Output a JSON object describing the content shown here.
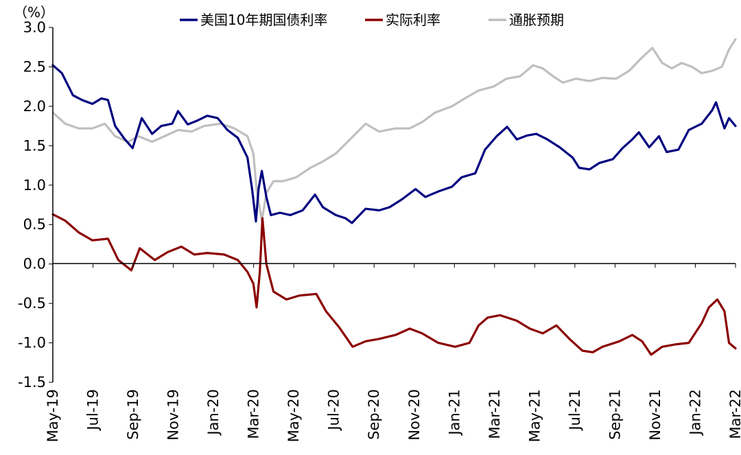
{
  "chart_data": {
    "type": "line",
    "unit_label": "（%）",
    "ylim": [
      -1.5,
      3.0
    ],
    "y_ticks": [
      {
        "value": 3.0,
        "label": "3.0",
        "color": "#000000"
      },
      {
        "value": 2.5,
        "label": "2.5",
        "color": "#000000"
      },
      {
        "value": 2.0,
        "label": "2.0",
        "color": "#000000"
      },
      {
        "value": 1.5,
        "label": "1.5",
        "color": "#000000"
      },
      {
        "value": 1.0,
        "label": "1.0",
        "color": "#000000"
      },
      {
        "value": 0.5,
        "label": "0.5",
        "color": "#000000"
      },
      {
        "value": 0.0,
        "label": "0.0",
        "color": "#000000"
      },
      {
        "value": -0.5,
        "label": "-0.5",
        "color": "#ff0000"
      },
      {
        "value": -1.0,
        "label": "-1.0",
        "color": "#ff0000"
      },
      {
        "value": -1.5,
        "label": "-1.5",
        "color": "#ff0000"
      }
    ],
    "x_ticks": [
      "May-19",
      "Jul-19",
      "Sep-19",
      "Nov-19",
      "Jan-20",
      "Mar-20",
      "May-20",
      "Jul-20",
      "Sep-20",
      "Nov-20",
      "Jan-21",
      "Mar-21",
      "May-21",
      "Jul-21",
      "Sep-21",
      "Nov-21",
      "Jan-22",
      "Mar-22"
    ],
    "x_range": [
      "2019-05-01",
      "2022-03-18"
    ],
    "legend_position": "top",
    "series": [
      {
        "name": "美国10年期国债利率",
        "color": "#000080",
        "points": [
          [
            "2019-05-01",
            2.52
          ],
          [
            "2019-05-15",
            2.42
          ],
          [
            "2019-06-01",
            2.14
          ],
          [
            "2019-06-15",
            2.08
          ],
          [
            "2019-07-01",
            2.03
          ],
          [
            "2019-07-15",
            2.1
          ],
          [
            "2019-07-25",
            2.08
          ],
          [
            "2019-08-05",
            1.75
          ],
          [
            "2019-08-20",
            1.58
          ],
          [
            "2019-09-01",
            1.47
          ],
          [
            "2019-09-15",
            1.85
          ],
          [
            "2019-10-01",
            1.65
          ],
          [
            "2019-10-15",
            1.75
          ],
          [
            "2019-11-01",
            1.78
          ],
          [
            "2019-11-10",
            1.94
          ],
          [
            "2019-11-25",
            1.77
          ],
          [
            "2019-12-10",
            1.82
          ],
          [
            "2019-12-25",
            1.88
          ],
          [
            "2020-01-10",
            1.85
          ],
          [
            "2020-01-25",
            1.7
          ],
          [
            "2020-02-10",
            1.6
          ],
          [
            "2020-02-25",
            1.35
          ],
          [
            "2020-03-03",
            0.95
          ],
          [
            "2020-03-09",
            0.54
          ],
          [
            "2020-03-13",
            0.95
          ],
          [
            "2020-03-18",
            1.18
          ],
          [
            "2020-03-25",
            0.85
          ],
          [
            "2020-04-01",
            0.62
          ],
          [
            "2020-04-15",
            0.65
          ],
          [
            "2020-05-01",
            0.62
          ],
          [
            "2020-05-20",
            0.68
          ],
          [
            "2020-06-08",
            0.88
          ],
          [
            "2020-06-20",
            0.72
          ],
          [
            "2020-07-10",
            0.62
          ],
          [
            "2020-07-25",
            0.58
          ],
          [
            "2020-08-04",
            0.52
          ],
          [
            "2020-08-25",
            0.7
          ],
          [
            "2020-09-15",
            0.68
          ],
          [
            "2020-10-01",
            0.72
          ],
          [
            "2020-10-20",
            0.82
          ],
          [
            "2020-11-10",
            0.95
          ],
          [
            "2020-11-25",
            0.85
          ],
          [
            "2020-12-15",
            0.92
          ],
          [
            "2021-01-05",
            0.98
          ],
          [
            "2021-01-20",
            1.1
          ],
          [
            "2021-02-10",
            1.15
          ],
          [
            "2021-02-25",
            1.45
          ],
          [
            "2021-03-15",
            1.62
          ],
          [
            "2021-03-31",
            1.74
          ],
          [
            "2021-04-15",
            1.58
          ],
          [
            "2021-05-01",
            1.63
          ],
          [
            "2021-05-15",
            1.65
          ],
          [
            "2021-06-01",
            1.58
          ],
          [
            "2021-06-20",
            1.48
          ],
          [
            "2021-07-10",
            1.35
          ],
          [
            "2021-07-20",
            1.22
          ],
          [
            "2021-08-05",
            1.2
          ],
          [
            "2021-08-20",
            1.28
          ],
          [
            "2021-09-10",
            1.33
          ],
          [
            "2021-09-25",
            1.47
          ],
          [
            "2021-10-10",
            1.58
          ],
          [
            "2021-10-20",
            1.67
          ],
          [
            "2021-11-05",
            1.48
          ],
          [
            "2021-11-20",
            1.62
          ],
          [
            "2021-12-02",
            1.42
          ],
          [
            "2021-12-20",
            1.45
          ],
          [
            "2022-01-05",
            1.7
          ],
          [
            "2022-01-25",
            1.78
          ],
          [
            "2022-02-10",
            1.95
          ],
          [
            "2022-02-16",
            2.05
          ],
          [
            "2022-03-01",
            1.72
          ],
          [
            "2022-03-08",
            1.85
          ],
          [
            "2022-03-18",
            1.75
          ]
        ]
      },
      {
        "name": "实际利率",
        "color": "#8b0000",
        "points": [
          [
            "2019-05-01",
            0.63
          ],
          [
            "2019-05-20",
            0.55
          ],
          [
            "2019-06-10",
            0.4
          ],
          [
            "2019-07-01",
            0.3
          ],
          [
            "2019-07-25",
            0.32
          ],
          [
            "2019-08-10",
            0.05
          ],
          [
            "2019-08-30",
            -0.08
          ],
          [
            "2019-09-12",
            0.2
          ],
          [
            "2019-10-05",
            0.05
          ],
          [
            "2019-10-25",
            0.15
          ],
          [
            "2019-11-15",
            0.22
          ],
          [
            "2019-12-05",
            0.12
          ],
          [
            "2019-12-25",
            0.14
          ],
          [
            "2020-01-20",
            0.12
          ],
          [
            "2020-02-10",
            0.05
          ],
          [
            "2020-02-25",
            -0.1
          ],
          [
            "2020-03-05",
            -0.25
          ],
          [
            "2020-03-10",
            -0.55
          ],
          [
            "2020-03-15",
            -0.1
          ],
          [
            "2020-03-19",
            0.58
          ],
          [
            "2020-03-25",
            0.0
          ],
          [
            "2020-04-05",
            -0.35
          ],
          [
            "2020-04-25",
            -0.45
          ],
          [
            "2020-05-15",
            -0.4
          ],
          [
            "2020-06-10",
            -0.38
          ],
          [
            "2020-06-25",
            -0.6
          ],
          [
            "2020-07-15",
            -0.8
          ],
          [
            "2020-08-05",
            -1.05
          ],
          [
            "2020-08-25",
            -0.98
          ],
          [
            "2020-09-15",
            -0.95
          ],
          [
            "2020-10-10",
            -0.9
          ],
          [
            "2020-11-01",
            -0.82
          ],
          [
            "2020-11-20",
            -0.88
          ],
          [
            "2020-12-15",
            -1.0
          ],
          [
            "2021-01-10",
            -1.05
          ],
          [
            "2021-02-01",
            -1.0
          ],
          [
            "2021-02-15",
            -0.78
          ],
          [
            "2021-03-01",
            -0.68
          ],
          [
            "2021-03-20",
            -0.65
          ],
          [
            "2021-04-15",
            -0.72
          ],
          [
            "2021-05-05",
            -0.82
          ],
          [
            "2021-05-25",
            -0.88
          ],
          [
            "2021-06-15",
            -0.78
          ],
          [
            "2021-07-05",
            -0.95
          ],
          [
            "2021-07-25",
            -1.1
          ],
          [
            "2021-08-10",
            -1.12
          ],
          [
            "2021-08-25",
            -1.05
          ],
          [
            "2021-09-20",
            -0.98
          ],
          [
            "2021-10-10",
            -0.9
          ],
          [
            "2021-10-25",
            -0.98
          ],
          [
            "2021-11-08",
            -1.15
          ],
          [
            "2021-11-25",
            -1.05
          ],
          [
            "2021-12-15",
            -1.02
          ],
          [
            "2022-01-05",
            -1.0
          ],
          [
            "2022-01-25",
            -0.75
          ],
          [
            "2022-02-05",
            -0.55
          ],
          [
            "2022-02-18",
            -0.45
          ],
          [
            "2022-03-01",
            -0.6
          ],
          [
            "2022-03-08",
            -1.0
          ],
          [
            "2022-03-18",
            -1.07
          ]
        ]
      },
      {
        "name": "通胀预期",
        "color": "#bfbfbf",
        "points": [
          [
            "2019-05-01",
            1.92
          ],
          [
            "2019-05-20",
            1.78
          ],
          [
            "2019-06-10",
            1.72
          ],
          [
            "2019-07-01",
            1.72
          ],
          [
            "2019-07-20",
            1.78
          ],
          [
            "2019-08-05",
            1.62
          ],
          [
            "2019-08-25",
            1.55
          ],
          [
            "2019-09-10",
            1.62
          ],
          [
            "2019-10-01",
            1.55
          ],
          [
            "2019-10-20",
            1.62
          ],
          [
            "2019-11-10",
            1.7
          ],
          [
            "2019-12-01",
            1.68
          ],
          [
            "2019-12-20",
            1.75
          ],
          [
            "2020-01-15",
            1.78
          ],
          [
            "2020-02-05",
            1.72
          ],
          [
            "2020-02-25",
            1.62
          ],
          [
            "2020-03-05",
            1.4
          ],
          [
            "2020-03-10",
            0.95
          ],
          [
            "2020-03-18",
            0.55
          ],
          [
            "2020-03-25",
            0.9
          ],
          [
            "2020-04-05",
            1.05
          ],
          [
            "2020-04-20",
            1.05
          ],
          [
            "2020-05-10",
            1.1
          ],
          [
            "2020-06-01",
            1.22
          ],
          [
            "2020-06-20",
            1.3
          ],
          [
            "2020-07-10",
            1.4
          ],
          [
            "2020-08-01",
            1.58
          ],
          [
            "2020-08-25",
            1.78
          ],
          [
            "2020-09-15",
            1.68
          ],
          [
            "2020-10-10",
            1.72
          ],
          [
            "2020-11-01",
            1.72
          ],
          [
            "2020-11-20",
            1.8
          ],
          [
            "2020-12-10",
            1.92
          ],
          [
            "2021-01-05",
            2.0
          ],
          [
            "2021-01-25",
            2.1
          ],
          [
            "2021-02-15",
            2.2
          ],
          [
            "2021-03-10",
            2.25
          ],
          [
            "2021-03-30",
            2.35
          ],
          [
            "2021-04-20",
            2.38
          ],
          [
            "2021-05-10",
            2.52
          ],
          [
            "2021-05-25",
            2.48
          ],
          [
            "2021-06-10",
            2.38
          ],
          [
            "2021-06-25",
            2.3
          ],
          [
            "2021-07-15",
            2.35
          ],
          [
            "2021-08-05",
            2.32
          ],
          [
            "2021-08-25",
            2.36
          ],
          [
            "2021-09-15",
            2.35
          ],
          [
            "2021-10-05",
            2.45
          ],
          [
            "2021-10-25",
            2.62
          ],
          [
            "2021-11-10",
            2.74
          ],
          [
            "2021-11-25",
            2.55
          ],
          [
            "2021-12-10",
            2.48
          ],
          [
            "2021-12-25",
            2.55
          ],
          [
            "2022-01-10",
            2.5
          ],
          [
            "2022-01-25",
            2.42
          ],
          [
            "2022-02-10",
            2.45
          ],
          [
            "2022-02-25",
            2.5
          ],
          [
            "2022-03-08",
            2.72
          ],
          [
            "2022-03-18",
            2.85
          ]
        ]
      }
    ]
  }
}
